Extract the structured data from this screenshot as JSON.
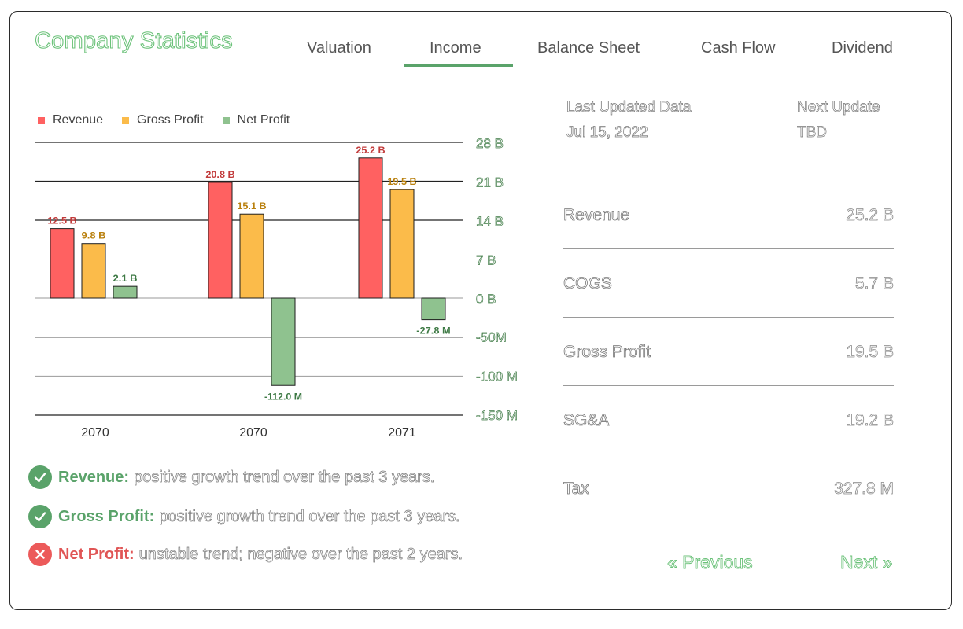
{
  "header": {
    "title": "Company Statistics",
    "tabs": [
      "Valuation",
      "Income",
      "Balance Sheet",
      "Cash Flow",
      "Dividend"
    ],
    "active_tab": "Income"
  },
  "legend": {
    "items": [
      {
        "label": "Revenue",
        "color": "#ff6161"
      },
      {
        "label": "Gross Profit",
        "color": "#fbbb4a"
      },
      {
        "label": "Net Profit",
        "color": "#8fc28f"
      }
    ]
  },
  "chart_data": {
    "type": "bar",
    "categories": [
      "2070",
      "2070",
      "2071"
    ],
    "series": [
      {
        "name": "Revenue",
        "values": [
          12.5,
          20.8,
          25.2
        ],
        "labels": [
          "12.5 B",
          "20.8 B",
          "25.2 B"
        ],
        "color": "#ff6161",
        "label_color": "#c23b3b"
      },
      {
        "name": "Gross Profit",
        "values": [
          9.8,
          15.1,
          19.5
        ],
        "labels": [
          "9.8 B",
          "15.1 B",
          "19.5 B"
        ],
        "color": "#fbbb4a",
        "label_color": "#b9800e"
      },
      {
        "name": "Net Profit",
        "values": [
          2.1,
          -112.0,
          -27.8
        ],
        "labels": [
          "2.1 B",
          "-112.0 M",
          "-27.8 M"
        ],
        "color": "#8fc28f",
        "label_color": "#3e7a45"
      }
    ],
    "y_tick_labels_positive": [
      "28 B",
      "21 B",
      "14 B",
      "7 B",
      "0 B"
    ],
    "y_tick_labels_negative": [
      "-50M",
      "-100 M",
      "-150 M"
    ],
    "positive_range_billions": [
      0,
      28
    ],
    "negative_range_millions": [
      -150,
      0
    ]
  },
  "assessments": [
    {
      "label": "Revenue:",
      "text": "positive growth trend over the past 3 years.",
      "status": "positive",
      "color": "#5aa36a"
    },
    {
      "label": "Gross Profit:",
      "text": "positive growth trend over the past 3 years.",
      "status": "positive",
      "color": "#5aa36a"
    },
    {
      "label": "Net Profit:",
      "text": "unstable trend; negative over the past 2 years.",
      "status": "negative",
      "color": "#e05555"
    }
  ],
  "updates": {
    "last_label": "Last Updated Data",
    "last_value": "Jul 15, 2022",
    "next_label": "Next Update",
    "next_value": "TBD"
  },
  "stats": [
    {
      "name": "Revenue",
      "value": "25.2 B"
    },
    {
      "name": "COGS",
      "value": "5.7 B"
    },
    {
      "name": "Gross Profit",
      "value": "19.5 B"
    },
    {
      "name": "SG&A",
      "value": "19.2 B"
    },
    {
      "name": "Tax",
      "value": "327.8 M"
    }
  ],
  "pagination": {
    "previous": "« Previous",
    "next": "Next »"
  }
}
